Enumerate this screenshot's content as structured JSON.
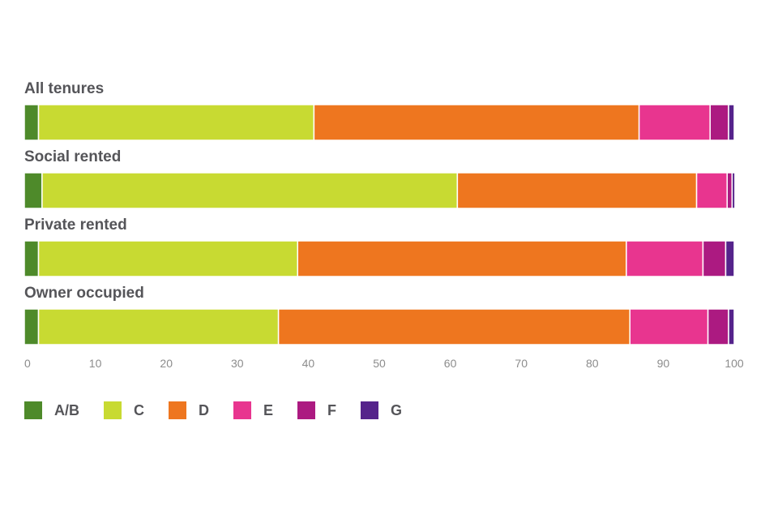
{
  "chart_data": {
    "type": "bar",
    "orientation": "horizontal",
    "stacked": true,
    "title": "",
    "xlabel": "",
    "ylabel": "",
    "xlim": [
      0,
      100
    ],
    "xticks": [
      0,
      10,
      20,
      30,
      40,
      50,
      60,
      70,
      80,
      90,
      100
    ],
    "grid": false,
    "legend_position": "bottom-left",
    "categories": [
      "All tenures",
      "Social rented",
      "Private rented",
      "Owner occupied"
    ],
    "series": [
      {
        "name": "A/B",
        "color": "#4e8a2a",
        "values": [
          2.0,
          2.5,
          2.0,
          2.0
        ]
      },
      {
        "name": "C",
        "color": "#c8da32",
        "values": [
          38.8,
          58.5,
          36.5,
          33.8
        ]
      },
      {
        "name": "D",
        "color": "#ee761f",
        "values": [
          45.8,
          33.7,
          46.3,
          49.5
        ]
      },
      {
        "name": "E",
        "color": "#e8358f",
        "values": [
          10.0,
          4.3,
          10.8,
          11.0
        ]
      },
      {
        "name": "F",
        "color": "#ac1a81",
        "values": [
          2.6,
          0.7,
          3.2,
          2.9
        ]
      },
      {
        "name": "G",
        "color": "#55238b",
        "values": [
          0.8,
          0.4,
          1.2,
          0.8
        ]
      }
    ]
  }
}
